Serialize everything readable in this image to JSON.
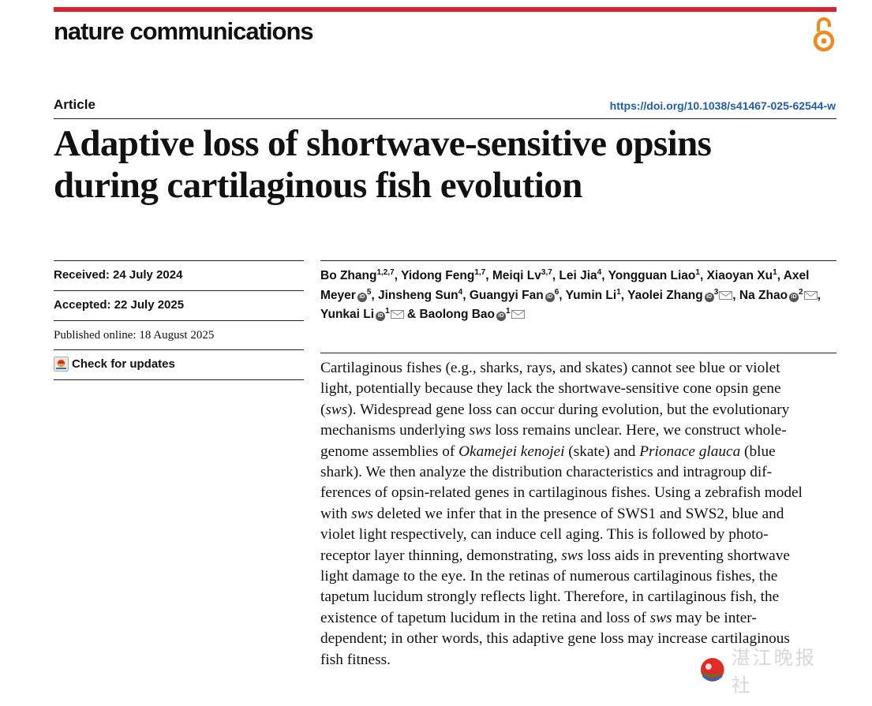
{
  "header": {
    "journal_name": "nature communications",
    "brand_color": "#d9232d",
    "open_access_icon": "open-access-icon",
    "open_access_color": "#f08a1c"
  },
  "meta": {
    "article_type": "Article",
    "doi": "https://doi.org/10.1038/s41467-025-62544-w",
    "title_line1": "Adaptive loss of shortwave-sensitive opsins",
    "title_line2": "during cartilaginous fish evolution",
    "received": "Received: 24 July 2024",
    "accepted": "Accepted: 22 July 2025",
    "published": "Published online: 18 August 2025",
    "check_updates": "Check for updates",
    "check_updates_icon": "check-for-updates-icon"
  },
  "authors": [
    {
      "name": "Bo Zhang",
      "aff": "1,2,7",
      "orcid": false,
      "mail": false,
      "sep": ", "
    },
    {
      "name": "Yidong Feng",
      "aff": "1,7",
      "orcid": false,
      "mail": false,
      "sep": ", "
    },
    {
      "name": "Meiqi Lv",
      "aff": "3,7",
      "orcid": false,
      "mail": false,
      "sep": ", "
    },
    {
      "name": "Lei Jia",
      "aff": "4",
      "orcid": false,
      "mail": false,
      "sep": ", "
    },
    {
      "name": "Yongguan Liao",
      "aff": "1",
      "orcid": false,
      "mail": false,
      "sep": ", "
    },
    {
      "name": "Xiaoyan Xu",
      "aff": "1",
      "orcid": false,
      "mail": false,
      "sep": ", "
    },
    {
      "name": "Axel Meyer",
      "aff": "5",
      "orcid": true,
      "mail": false,
      "sep": ", "
    },
    {
      "name": "Jinsheng Sun",
      "aff": "4",
      "orcid": false,
      "mail": false,
      "sep": ", "
    },
    {
      "name": "Guangyi Fan",
      "aff": "6",
      "orcid": true,
      "mail": false,
      "sep": ", "
    },
    {
      "name": "Yumin Li",
      "aff": "1",
      "orcid": false,
      "mail": false,
      "sep": ", "
    },
    {
      "name": "Yaolei Zhang",
      "aff": "3",
      "orcid": true,
      "mail": true,
      "sep": ", "
    },
    {
      "name": "Na Zhao",
      "aff": "2",
      "orcid": true,
      "mail": true,
      "sep": ", "
    },
    {
      "name": "Yunkai Li",
      "aff": "1",
      "orcid": true,
      "mail": true,
      "sep": " & "
    },
    {
      "name": "Baolong Bao",
      "aff": "1",
      "orcid": true,
      "mail": true,
      "sep": ""
    }
  ],
  "abstract_lines": [
    [
      {
        "t": "Cartilaginous fishes (e.g., sharks, rays, and skates) cannot see blue or violet"
      }
    ],
    [
      {
        "t": "light, potentially because they lack the shortwave-sensitive cone opsin gene"
      }
    ],
    [
      {
        "t": "("
      },
      {
        "t": "sws",
        "i": true
      },
      {
        "t": "). Widespread gene loss can occur during evolution, but the evolutionary"
      }
    ],
    [
      {
        "t": "mechanisms underlying "
      },
      {
        "t": "sws",
        "i": true
      },
      {
        "t": " loss remains unclear. Here, we construct whole-"
      }
    ],
    [
      {
        "t": "genome assemblies of "
      },
      {
        "t": "Okamejei kenojei",
        "i": true
      },
      {
        "t": " (skate) and "
      },
      {
        "t": "Prionace glauca",
        "i": true
      },
      {
        "t": " (blue"
      }
    ],
    [
      {
        "t": "shark). We then analyze the distribution characteristics and intragroup dif-"
      }
    ],
    [
      {
        "t": "ferences of opsin-related genes in cartilaginous fishes. Using a zebrafish model"
      }
    ],
    [
      {
        "t": "with "
      },
      {
        "t": "sws",
        "i": true
      },
      {
        "t": " deleted we infer that in the presence of SWS1 and SWS2, blue and"
      }
    ],
    [
      {
        "t": "violet light respectively, can induce cell aging. This is followed by photo-"
      }
    ],
    [
      {
        "t": "receptor layer thinning, demonstrating, "
      },
      {
        "t": "sws",
        "i": true
      },
      {
        "t": " loss aids in preventing shortwave"
      }
    ],
    [
      {
        "t": "light damage to the eye. In the retinas of numerous cartilaginous fishes, the"
      }
    ],
    [
      {
        "t": "tapetum lucidum strongly reflects light. Therefore, in cartilaginous fish, the"
      }
    ],
    [
      {
        "t": "existence of tapetum lucidum in the retina and loss of "
      },
      {
        "t": "sws",
        "i": true
      },
      {
        "t": " may be inter-"
      }
    ],
    [
      {
        "t": "dependent; in other words, this adaptive gene loss may increase cartilaginous"
      }
    ],
    [
      {
        "t": "fish fitness."
      }
    ]
  ],
  "watermark": {
    "text": "湛江晚报社",
    "logo_icon": "newspaper-logo-icon"
  }
}
